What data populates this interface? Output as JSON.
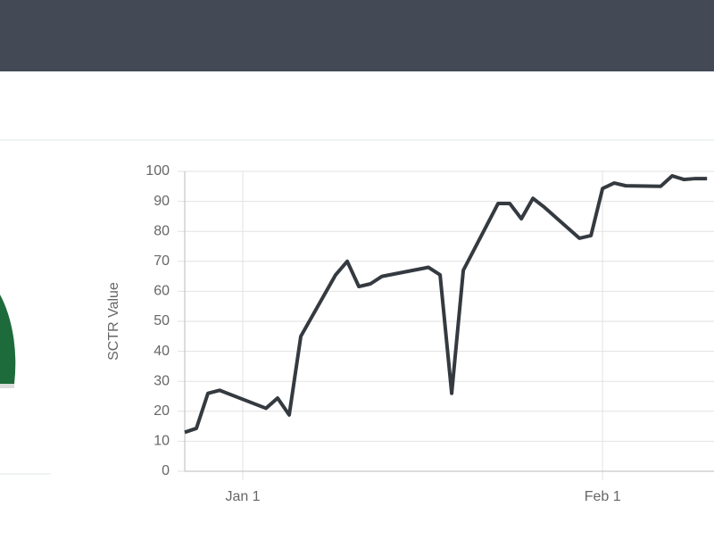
{
  "chart_data": {
    "type": "line",
    "y_label": "SCTR Value",
    "x": [
      -5,
      -4,
      -3,
      -2,
      2,
      3,
      4,
      5,
      8,
      9,
      10,
      11,
      12,
      16,
      17,
      18,
      19,
      22,
      23,
      24,
      25,
      26,
      29,
      30,
      31,
      32,
      33,
      36,
      37,
      38,
      39,
      40
    ],
    "series": [
      {
        "color": "#343a40",
        "values": [
          13,
          14.3,
          26,
          27,
          21,
          24.4,
          18.8,
          45,
          65.5,
          70,
          61.6,
          62.5,
          65,
          68,
          65.5,
          26,
          67,
          89.3,
          89.3,
          84.2,
          91,
          88,
          77.7,
          78.6,
          94.3,
          96.1,
          95.2,
          95,
          98.5,
          97.3,
          97.6,
          97.6
        ]
      }
    ],
    "xlim": [
      -5,
      40.6
    ],
    "xticks": [
      {
        "value": 0,
        "label": "Jan 1"
      },
      {
        "value": 31,
        "label": "Feb 1"
      }
    ],
    "ylim": [
      0,
      100
    ],
    "yticks": [
      0,
      10,
      20,
      30,
      40,
      50,
      60,
      70,
      80,
      90,
      100
    ],
    "grid": true
  }
}
